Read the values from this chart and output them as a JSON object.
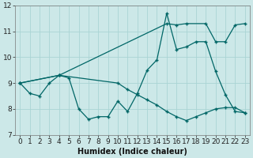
{
  "xlabel": "Humidex (Indice chaleur)",
  "bg_color": "#cce8e8",
  "line_color": "#006666",
  "grid_color": "#aad4d4",
  "series": [
    {
      "x": [
        0,
        1,
        2,
        3,
        4,
        5,
        6,
        7,
        8,
        9,
        10,
        11,
        12,
        13,
        14,
        15,
        16,
        17,
        18,
        19,
        20,
        21,
        22,
        23
      ],
      "y": [
        9.0,
        8.6,
        8.5,
        9.0,
        9.3,
        9.2,
        8.0,
        7.6,
        7.7,
        7.7,
        8.3,
        7.9,
        8.6,
        9.5,
        9.9,
        11.7,
        10.3,
        10.4,
        10.6,
        10.6,
        9.45,
        8.55,
        7.9,
        7.85
      ]
    },
    {
      "x": [
        0,
        4,
        15,
        16,
        17,
        19,
        20,
        21,
        22,
        23
      ],
      "y": [
        9.0,
        9.3,
        11.3,
        11.25,
        11.3,
        11.3,
        10.6,
        10.6,
        11.25,
        11.3
      ]
    },
    {
      "x": [
        0,
        4,
        10,
        11,
        12,
        13,
        14,
        15,
        16,
        17,
        18,
        19,
        20,
        21,
        22,
        23
      ],
      "y": [
        9.0,
        9.3,
        9.0,
        8.75,
        8.55,
        8.35,
        8.15,
        7.9,
        7.7,
        7.55,
        7.7,
        7.85,
        8.0,
        8.05,
        8.05,
        7.85
      ]
    }
  ],
  "xlim": [
    -0.5,
    23.5
  ],
  "ylim": [
    7.0,
    12.0
  ],
  "yticks": [
    7,
    8,
    9,
    10,
    11,
    12
  ],
  "xticks": [
    0,
    1,
    2,
    3,
    4,
    5,
    6,
    7,
    8,
    9,
    10,
    11,
    12,
    13,
    14,
    15,
    16,
    17,
    18,
    19,
    20,
    21,
    22,
    23
  ],
  "label_fontsize": 7,
  "tick_fontsize": 6.5
}
